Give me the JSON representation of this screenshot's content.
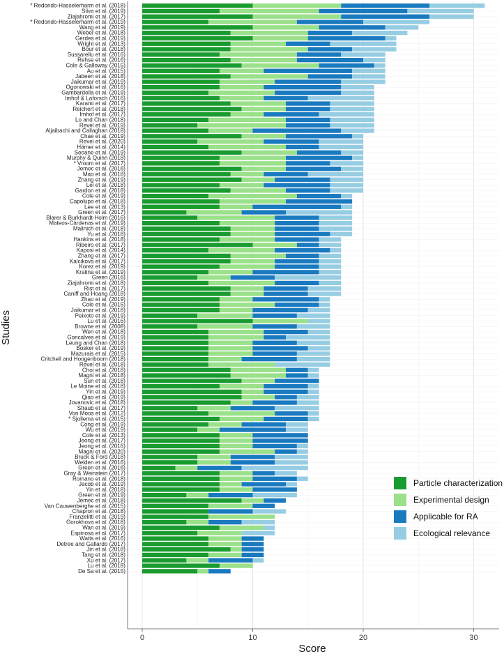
{
  "chart_data": {
    "type": "bar",
    "orientation": "horizontal",
    "stacked": true,
    "xlabel": "Score",
    "ylabel": "Studies",
    "xlim": [
      0,
      32
    ],
    "xticks": [
      0,
      10,
      20,
      30
    ],
    "grid": true,
    "legend_position": "bottom-right",
    "series": [
      {
        "name": "Particle characterization",
        "color": "#1a9b2f"
      },
      {
        "name": "Experimental design",
        "color": "#9be08a"
      },
      {
        "name": "Applicable for RA",
        "color": "#1a7abf"
      },
      {
        "name": "Ecological relevance",
        "color": "#97cde3"
      }
    ],
    "studies": [
      {
        "name": "* Redondo-Hasselerharm et al. (2018)",
        "values": [
          10,
          8,
          8,
          5
        ]
      },
      {
        "name": "Silva et al. (2019)",
        "values": [
          7,
          9,
          8,
          6
        ]
      },
      {
        "name": "Ziajahromi et al. (2017)",
        "values": [
          10,
          8,
          8,
          4
        ]
      },
      {
        "name": "* Redondo-Hasselerharm et al. (2019)",
        "values": [
          6,
          8,
          6,
          6
        ]
      },
      {
        "name": "Wang et al. (2019)",
        "values": [
          10,
          6,
          6,
          3
        ]
      },
      {
        "name": "Weber et al. (2018)",
        "values": [
          8,
          7,
          4,
          5
        ]
      },
      {
        "name": "Gerdes et al. (2019)",
        "values": [
          10,
          5,
          7,
          1
        ]
      },
      {
        "name": "Wright et al. (2013)",
        "values": [
          8,
          5,
          4,
          6
        ]
      },
      {
        "name": "Bour et al. (2018)",
        "values": [
          8,
          7,
          4,
          4
        ]
      },
      {
        "name": "Sussarellu et al. (2016)",
        "values": [
          7,
          7,
          4,
          4
        ]
      },
      {
        "name": "Rehse et al. (2016)",
        "values": [
          8,
          6,
          6,
          2
        ]
      },
      {
        "name": "Cole & Galloway (2015)",
        "values": [
          9,
          7,
          5,
          1
        ]
      },
      {
        "name": "Au et al. (2015)",
        "values": [
          7,
          4,
          8,
          3
        ]
      },
      {
        "name": "Jabeen et al. (2018)",
        "values": [
          8,
          7,
          4,
          3
        ]
      },
      {
        "name": "Jaikumar et al. (2019)",
        "values": [
          7,
          5,
          6,
          4
        ]
      },
      {
        "name": "Ogonowski et al. (2016)",
        "values": [
          7,
          4,
          7,
          3
        ]
      },
      {
        "name": "Gambardella et al. (2019)",
        "values": [
          6,
          6,
          6,
          3
        ]
      },
      {
        "name": "Imhof & Laforsch (2016)",
        "values": [
          7,
          4,
          4,
          6
        ]
      },
      {
        "name": "Karami et al. (2017)",
        "values": [
          8,
          5,
          4,
          4
        ]
      },
      {
        "name": "Reichert et al. (2018)",
        "values": [
          9,
          4,
          4,
          4
        ]
      },
      {
        "name": "Imhof et al. (2017)",
        "values": [
          8,
          3,
          5,
          5
        ]
      },
      {
        "name": "Lo and Chan (2018)",
        "values": [
          6,
          7,
          4,
          4
        ]
      },
      {
        "name": "Revel et al. (2019)",
        "values": [
          5,
          8,
          4,
          4
        ]
      },
      {
        "name": "Aljaibachi and Callaghan (2018)",
        "values": [
          6,
          4,
          8,
          3
        ]
      },
      {
        "name": "Chae et al. (2019)",
        "values": [
          9,
          4,
          6,
          1
        ]
      },
      {
        "name": "Revel et al. (2020)",
        "values": [
          5,
          6,
          5,
          4
        ]
      },
      {
        "name": "Hämer et al. (2014)",
        "values": [
          6,
          7,
          3,
          4
        ]
      },
      {
        "name": "Seoane et al. (2019)",
        "values": [
          9,
          5,
          4,
          2
        ]
      },
      {
        "name": "Murphy & Quinn (2018)",
        "values": [
          7,
          6,
          6,
          1
        ]
      },
      {
        "name": "* Vroom et al. (2017)",
        "values": [
          7,
          6,
          4,
          3
        ]
      },
      {
        "name": "Jemec et al. (2016)",
        "values": [
          9,
          4,
          5,
          2
        ]
      },
      {
        "name": "Mao et al. (2018)",
        "values": [
          8,
          3,
          4,
          5
        ]
      },
      {
        "name": "Zhang et al. (2019)",
        "values": [
          9,
          3,
          5,
          3
        ]
      },
      {
        "name": "Lei et al. (2018)",
        "values": [
          7,
          4,
          6,
          3
        ]
      },
      {
        "name": "Gardon et al. (2018)",
        "values": [
          8,
          5,
          4,
          3
        ]
      },
      {
        "name": "Cole et al. (2019)",
        "values": [
          6,
          8,
          4,
          1
        ]
      },
      {
        "name": "Capolupo et al. (2018)",
        "values": [
          7,
          6,
          6,
          0
        ]
      },
      {
        "name": "Lee et al. (2013)",
        "values": [
          7,
          3,
          8,
          1
        ]
      },
      {
        "name": "Green et al. (2017)",
        "values": [
          4,
          5,
          4,
          6
        ]
      },
      {
        "name": "Blarer & Burkhardt-Holm (2016)",
        "values": [
          5,
          7,
          4,
          3
        ]
      },
      {
        "name": "Mateos-Cárdenas et al. (2019)",
        "values": [
          7,
          5,
          4,
          3
        ]
      },
      {
        "name": "Malinich et al. (2018)",
        "values": [
          8,
          4,
          4,
          3
        ]
      },
      {
        "name": "Yu et al. (2018)",
        "values": [
          8,
          4,
          5,
          2
        ]
      },
      {
        "name": "Hankins et al. (2018)",
        "values": [
          7,
          5,
          4,
          2
        ]
      },
      {
        "name": "Ribeiro et al. (2017)",
        "values": [
          10,
          4,
          2,
          2
        ]
      },
      {
        "name": "Kaposi et al. (2014)",
        "values": [
          6,
          6,
          5,
          1
        ]
      },
      {
        "name": "Zhang et al. (2017)",
        "values": [
          8,
          5,
          3,
          2
        ]
      },
      {
        "name": "Kalcikova et al. (2017)",
        "values": [
          8,
          4,
          4,
          2
        ]
      },
      {
        "name": "Korez et al. (2019)",
        "values": [
          7,
          5,
          4,
          2
        ]
      },
      {
        "name": "Kratina et al. (2019)",
        "values": [
          6,
          4,
          6,
          2
        ]
      },
      {
        "name": "Green (2016)",
        "values": [
          5,
          3,
          4,
          6
        ]
      },
      {
        "name": "Ziajahromi et al. (2018)",
        "values": [
          6,
          6,
          4,
          2
        ]
      },
      {
        "name": "Rist et al. (2017)",
        "values": [
          8,
          3,
          4,
          3
        ]
      },
      {
        "name": "Caniff and Hoang (2018)",
        "values": [
          8,
          3,
          4,
          3
        ]
      },
      {
        "name": "Zhao et al. (2019)",
        "values": [
          7,
          3,
          6,
          1
        ]
      },
      {
        "name": "Cole et al. (2015)",
        "values": [
          7,
          5,
          4,
          1
        ]
      },
      {
        "name": "Jaikumar et al. (2018)",
        "values": [
          7,
          3,
          5,
          2
        ]
      },
      {
        "name": "Peixoto et al. (2019)",
        "values": [
          5,
          5,
          4,
          3
        ]
      },
      {
        "name": "Lu et al. (2016)",
        "values": [
          10,
          5,
          0,
          2
        ]
      },
      {
        "name": "Browne et al. (2008)",
        "values": [
          5,
          5,
          4,
          3
        ]
      },
      {
        "name": "Wen et al. (2018)",
        "values": [
          6,
          5,
          4,
          2
        ]
      },
      {
        "name": "Goncalves et al. (2019)",
        "values": [
          6,
          5,
          2,
          4
        ]
      },
      {
        "name": "Leung and Chan (2018)",
        "values": [
          6,
          4,
          4,
          3
        ]
      },
      {
        "name": "Bosker et al. (2019)",
        "values": [
          6,
          4,
          5,
          2
        ]
      },
      {
        "name": "Mazurais et al. (2015)",
        "values": [
          6,
          4,
          4,
          3
        ]
      },
      {
        "name": "Critchell and Hoogenboom (2018)",
        "values": [
          6,
          3,
          5,
          3
        ]
      },
      {
        "name": "Revel et al. (2018)",
        "values": [
          6,
          6,
          0,
          5
        ]
      },
      {
        "name": "Choi et al. (2018)",
        "values": [
          8,
          5,
          2,
          1
        ]
      },
      {
        "name": "Magni et al. (2018)",
        "values": [
          8,
          5,
          2,
          1
        ]
      },
      {
        "name": "Sun et al. (2018)",
        "values": [
          9,
          3,
          4,
          0
        ]
      },
      {
        "name": "Le Moine et al. (2018)",
        "values": [
          7,
          4,
          4,
          1
        ]
      },
      {
        "name": "Yin et al. (2019)",
        "values": [
          9,
          2,
          4,
          1
        ]
      },
      {
        "name": "Qiao et al. (2019)",
        "values": [
          9,
          3,
          2,
          2
        ]
      },
      {
        "name": "Jovanovic et al. (2018)",
        "values": [
          8,
          2,
          4,
          2
        ]
      },
      {
        "name": "Straub et al. (2017)",
        "values": [
          5,
          3,
          4,
          4
        ]
      },
      {
        "name": "Von Moos et al. (2012)",
        "values": [
          6,
          6,
          3,
          1
        ]
      },
      {
        "name": "* Sjollema et al. (2015)",
        "values": [
          7,
          4,
          4,
          1
        ]
      },
      {
        "name": "Cong et al. (2019)",
        "values": [
          6,
          3,
          4,
          2
        ]
      },
      {
        "name": "Wu et al. (2019)",
        "values": [
          5,
          2,
          6,
          2
        ]
      },
      {
        "name": "Cole et al. (2013)",
        "values": [
          7,
          3,
          5,
          0
        ]
      },
      {
        "name": "Jeong et al. (2017)",
        "values": [
          7,
          3,
          5,
          0
        ]
      },
      {
        "name": "Jeong et al. (2016)",
        "values": [
          7,
          3,
          4,
          1
        ]
      },
      {
        "name": "Magni et al. (2020)",
        "values": [
          7,
          5,
          2,
          1
        ]
      },
      {
        "name": "Bruck & Ford (2018)",
        "values": [
          5,
          3,
          4,
          3
        ]
      },
      {
        "name": "Welden et al. (2016)",
        "values": [
          5,
          3,
          4,
          3
        ]
      },
      {
        "name": "Green et al. (2016)",
        "values": [
          3,
          2,
          4,
          6
        ]
      },
      {
        "name": "Gray & Weinstein (2017)",
        "values": [
          7,
          3,
          2,
          2
        ]
      },
      {
        "name": "Romano et al. (2018)",
        "values": [
          7,
          3,
          4,
          1
        ]
      },
      {
        "name": "Jacob et al. (2019)",
        "values": [
          7,
          2,
          4,
          1
        ]
      },
      {
        "name": "Yin et al. (2018)",
        "values": [
          7,
          3,
          4,
          0
        ]
      },
      {
        "name": "Green et al. (2019)",
        "values": [
          4,
          2,
          4,
          4
        ]
      },
      {
        "name": "Jemec et al. (2018)",
        "values": [
          9,
          2,
          2,
          0
        ]
      },
      {
        "name": "Van Cauwenberghe et al. (2015)",
        "values": [
          6,
          4,
          2,
          0
        ]
      },
      {
        "name": "Chapron et al. (2018)",
        "values": [
          6,
          0,
          4,
          3
        ]
      },
      {
        "name": "Franzelitti et al. (2019)",
        "values": [
          6,
          6,
          0,
          0
        ]
      },
      {
        "name": "Gorokhova et al. (2018)",
        "values": [
          4,
          2,
          3,
          3
        ]
      },
      {
        "name": "Wan et al. (2019)",
        "values": [
          7,
          4,
          0,
          1
        ]
      },
      {
        "name": "Espinosa et al. (2017)",
        "values": [
          5,
          4,
          0,
          3
        ]
      },
      {
        "name": "Watts et al. (2016)",
        "values": [
          6,
          3,
          2,
          0
        ]
      },
      {
        "name": "Detree and Gallardo (2017)",
        "values": [
          6,
          3,
          2,
          0
        ]
      },
      {
        "name": "Jin et al. (2018)",
        "values": [
          8,
          1,
          2,
          0
        ]
      },
      {
        "name": "Tang et al. (2018)",
        "values": [
          6,
          3,
          2,
          0
        ]
      },
      {
        "name": "Xu et al. (2017)",
        "values": [
          4,
          2,
          4,
          1
        ]
      },
      {
        "name": "Lu et al. (2018)",
        "values": [
          7,
          3,
          0,
          0
        ]
      },
      {
        "name": "De Sa et al. (2015)",
        "values": [
          5,
          1,
          2,
          0
        ]
      }
    ]
  }
}
